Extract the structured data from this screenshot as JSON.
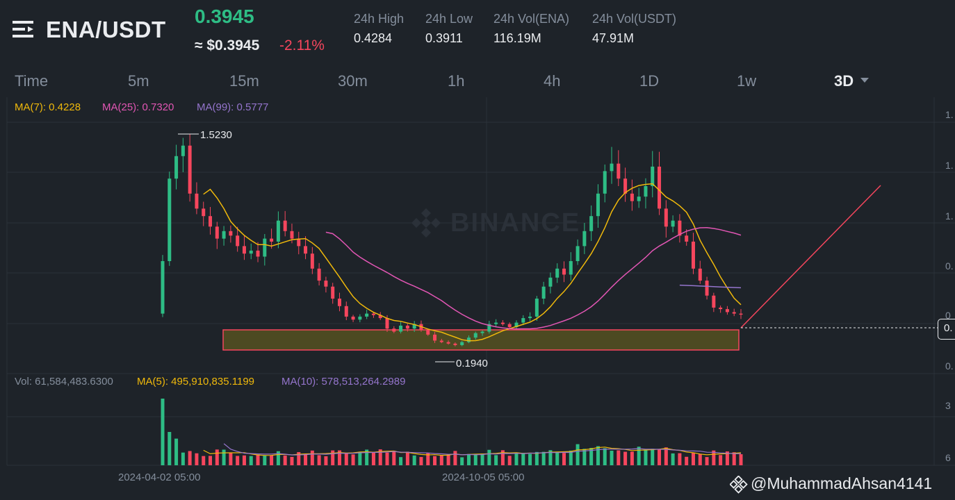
{
  "header": {
    "pair": "ENA/USDT",
    "price": "0.3945",
    "usd_price": "≈ $0.3945",
    "change": "-2.11%"
  },
  "stats": [
    {
      "label": "24h High",
      "value": "0.4284"
    },
    {
      "label": "24h Low",
      "value": "0.3911"
    },
    {
      "label": "24h Vol(ENA)",
      "value": "116.19M"
    },
    {
      "label": "24h Vol(USDT)",
      "value": "47.91M"
    }
  ],
  "timeframes": [
    "Time",
    "5m",
    "15m",
    "30m",
    "1h",
    "4h",
    "1D",
    "1w",
    "3D"
  ],
  "active_timeframe": "3D",
  "ma_legend": {
    "ma7": "MA(7): 0.4228",
    "ma25": "MA(25): 0.7320",
    "ma99": "MA(99): 0.5777"
  },
  "vol_legend": {
    "vol": "Vol: 61,584,483.6300",
    "ma5": "MA(5): 495,910,835.1199",
    "ma10": "MA(10): 578,513,264.2989"
  },
  "annotations": {
    "high": "1.5230",
    "low": "0.1940"
  },
  "dates": [
    "2024-04-02 05:00",
    "2024-10-05 05:00"
  ],
  "y_axis_labels": [
    "1.",
    "1.",
    "1.",
    "0.",
    "0",
    "0.",
    "3",
    "6"
  ],
  "current_price_label": "0.",
  "watermark": "BINANCE",
  "credit": "@MuhammadAhsan4141",
  "colors": {
    "up": "#2ebd85",
    "down": "#f6465d",
    "ma7": "#f0b90b",
    "ma25": "#e256b4",
    "ma99": "#9575cd",
    "zone_fill": "#4d4a22",
    "zone_stroke": "#f6465d"
  },
  "chart_data": {
    "type": "candlestick",
    "interval": "3D",
    "annotated_high": 1.523,
    "annotated_low": 0.194,
    "closes_approx": [
      0.75,
      1.3,
      1.45,
      1.52,
      1.2,
      1.1,
      1.05,
      0.98,
      0.9,
      0.95,
      0.92,
      0.85,
      0.8,
      0.82,
      0.78,
      0.9,
      0.88,
      1.02,
      0.95,
      0.9,
      0.85,
      0.8,
      0.7,
      0.62,
      0.58,
      0.5,
      0.45,
      0.38,
      0.36,
      0.38,
      0.4,
      0.39,
      0.37,
      0.3,
      0.28,
      0.32,
      0.3,
      0.33,
      0.29,
      0.26,
      0.22,
      0.21,
      0.2,
      0.19,
      0.21,
      0.24,
      0.27,
      0.28,
      0.33,
      0.34,
      0.33,
      0.31,
      0.34,
      0.37,
      0.38,
      0.5,
      0.58,
      0.64,
      0.7,
      0.66,
      0.75,
      0.85,
      0.95,
      1.05,
      1.2,
      1.35,
      1.4,
      1.3,
      1.2,
      1.15,
      1.18,
      1.25,
      1.38,
      1.1,
      0.98,
      1.02,
      0.92,
      0.88,
      0.7,
      0.62,
      0.52,
      0.44,
      0.43,
      0.41,
      0.4,
      0.3945
    ],
    "series": [
      {
        "name": "MA(7)",
        "last": 0.4228
      },
      {
        "name": "MA(25)",
        "last": 0.732
      },
      {
        "name": "MA(99)",
        "last": 0.5777
      }
    ]
  }
}
